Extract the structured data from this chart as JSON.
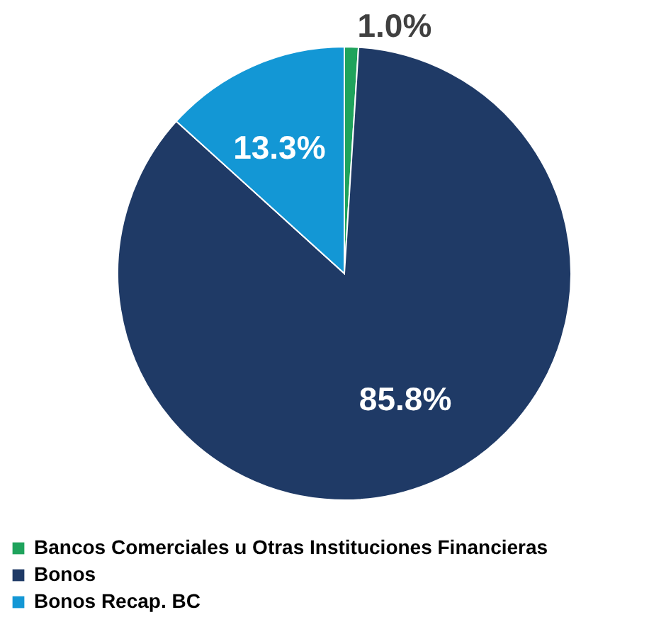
{
  "chart_data": {
    "type": "pie",
    "categories": [
      "Bancos Comerciales u Otras Instituciones Financieras",
      "Bonos",
      "Bonos Recap. BC"
    ],
    "values": [
      1.0,
      85.8,
      13.3
    ],
    "colors": [
      "#1fa35c",
      "#1f3a66",
      "#1397d5"
    ],
    "value_labels": [
      "1.0%",
      "85.8%",
      "13.3%"
    ],
    "legend": "bottom left"
  }
}
